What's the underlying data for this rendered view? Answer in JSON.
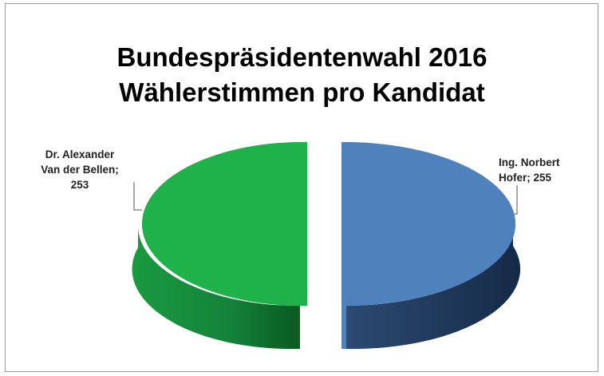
{
  "chart_data": {
    "type": "pie",
    "title": "Bundespräsidentenwahl 2016",
    "subtitle": "Wählerstimmen pro Kandidat",
    "slices": [
      {
        "name": "Dr. Alexander Van der Bellen",
        "value": 253,
        "label_lines": [
          "Dr. Alexander",
          "Van der Bellen;",
          "253"
        ],
        "color": "#1fb24a",
        "dark_color": "#0f6b2a"
      },
      {
        "name": "Ing. Norbert Hofer",
        "value": 255,
        "label_lines": [
          "Ing. Norbert",
          "Hofer; 255"
        ],
        "color": "#4f81bd",
        "dark_color": "#1f3556"
      }
    ],
    "legend": "none",
    "style": "3d-exploded"
  }
}
